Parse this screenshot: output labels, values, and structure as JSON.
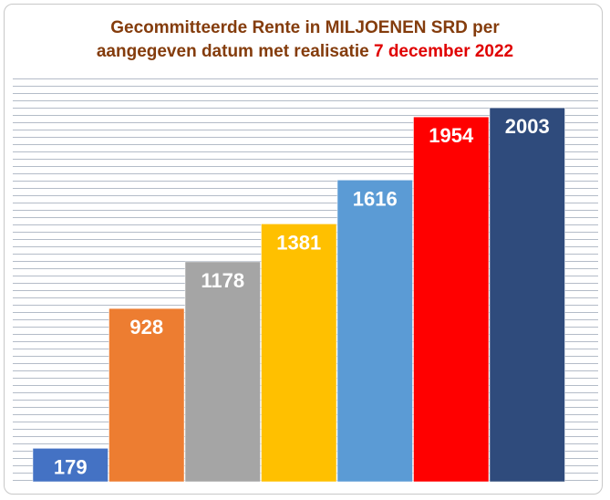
{
  "title": {
    "line1": "Gecommitteerde Rente in MILJOENEN SRD per",
    "line2_prefix": "aangegeven datum met realisatie ",
    "line2_highlight": "7 december 2022"
  },
  "colors": {
    "title": "#843c0c",
    "highlight": "#e00000",
    "gridline": "#b4bcc8",
    "label": "#ffffff"
  },
  "chart_data": {
    "type": "bar",
    "title": "Gecommitteerde Rente in MILJOENEN SRD per aangegeven datum met realisatie 7 december 2022",
    "xlabel": "",
    "ylabel": "",
    "categories": [
      "",
      "",
      "",
      "",
      "",
      "",
      ""
    ],
    "values": [
      179,
      928,
      1178,
      1381,
      1616,
      1954,
      2003
    ],
    "data_labels": [
      "179",
      "928",
      "1178",
      "1381",
      "1616",
      "1954",
      "2003"
    ],
    "bar_colors": [
      "#4472c4",
      "#ed7d31",
      "#a5a5a5",
      "#ffc000",
      "#5b9bd5",
      "#ff0000",
      "#2f4b7c"
    ],
    "ylim": [
      0,
      2160
    ],
    "grid": true,
    "legend": "none"
  }
}
